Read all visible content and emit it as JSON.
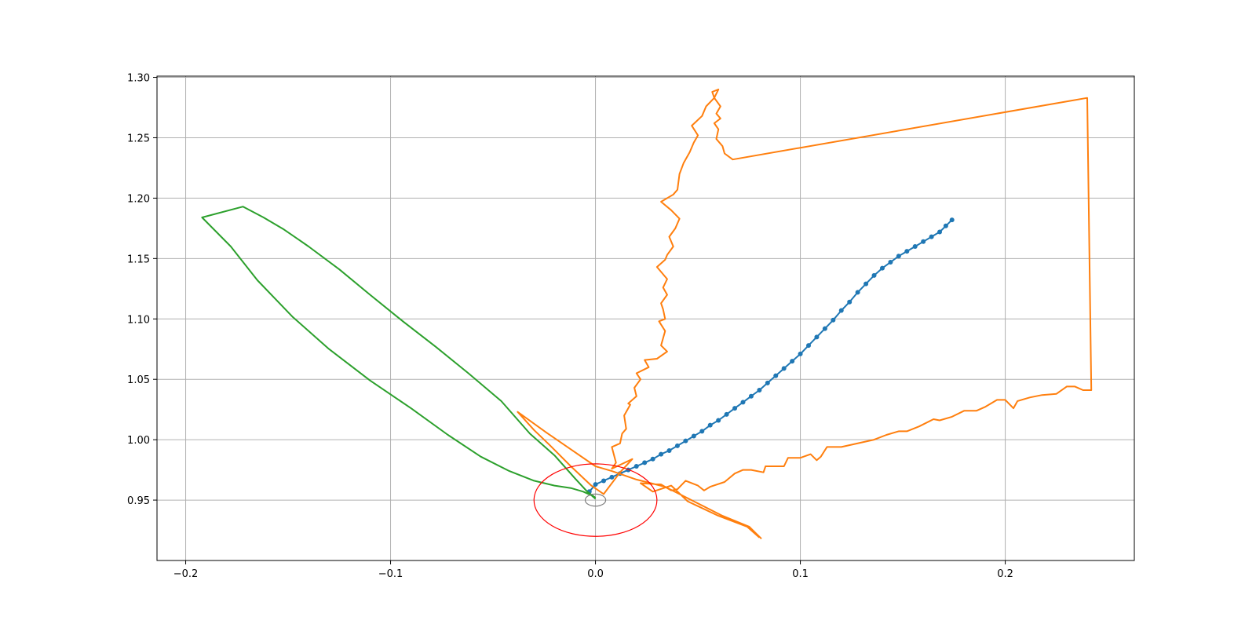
{
  "chart_data": {
    "type": "line",
    "title": "",
    "xlabel": "",
    "ylabel": "",
    "xlim": [
      -0.214,
      0.263
    ],
    "ylim": [
      0.9,
      1.301
    ],
    "x_ticks": [
      -0.2,
      -0.1,
      0.0,
      0.1,
      0.2
    ],
    "x_tick_labels": [
      "−0.2",
      "−0.1",
      "0.0",
      "0.1",
      "0.2"
    ],
    "y_ticks": [
      0.95,
      1.0,
      1.05,
      1.1,
      1.15,
      1.2,
      1.25,
      1.3
    ],
    "y_tick_labels": [
      "0.95",
      "1.00",
      "1.05",
      "1.10",
      "1.15",
      "1.20",
      "1.25",
      "1.30"
    ],
    "grid": true,
    "series": [
      {
        "color": "#1f77b4",
        "marker": "circle",
        "x": [
          -0.003,
          0.0,
          0.004,
          0.008,
          0.012,
          0.016,
          0.02,
          0.024,
          0.028,
          0.032,
          0.036,
          0.04,
          0.044,
          0.048,
          0.052,
          0.056,
          0.06,
          0.064,
          0.068,
          0.072,
          0.076,
          0.08,
          0.084,
          0.088,
          0.092,
          0.096,
          0.1,
          0.104,
          0.108,
          0.112,
          0.116,
          0.12,
          0.124,
          0.128,
          0.132,
          0.136,
          0.14,
          0.144,
          0.148,
          0.152,
          0.156,
          0.16,
          0.164,
          0.168,
          0.171,
          0.174
        ],
        "y": [
          0.957,
          0.963,
          0.966,
          0.969,
          0.972,
          0.975,
          0.978,
          0.981,
          0.984,
          0.988,
          0.991,
          0.995,
          0.999,
          1.003,
          1.007,
          1.012,
          1.016,
          1.021,
          1.026,
          1.031,
          1.036,
          1.041,
          1.047,
          1.053,
          1.059,
          1.065,
          1.071,
          1.078,
          1.085,
          1.092,
          1.099,
          1.107,
          1.114,
          1.122,
          1.129,
          1.136,
          1.142,
          1.147,
          1.152,
          1.156,
          1.16,
          1.164,
          1.168,
          1.172,
          1.177,
          1.182
        ]
      },
      {
        "color": "#ff7f0e",
        "marker": "none",
        "x": [
          0.081,
          0.075,
          0.062,
          0.048,
          0.034,
          0.02,
          0.008,
          0.0,
          -0.012,
          -0.024,
          -0.038,
          -0.03,
          -0.022,
          -0.012,
          -0.002,
          0.004,
          0.012,
          0.018,
          0.008,
          0.01,
          0.008,
          0.012,
          0.013,
          0.015,
          0.014,
          0.017,
          0.016,
          0.02,
          0.019,
          0.022,
          0.02,
          0.026,
          0.024,
          0.03,
          0.035,
          0.032,
          0.034,
          0.031,
          0.034,
          0.033,
          0.032,
          0.035,
          0.033,
          0.035,
          0.03,
          0.034,
          0.035,
          0.038,
          0.036,
          0.039,
          0.041,
          0.037,
          0.032,
          0.038,
          0.04,
          0.041,
          0.043,
          0.046,
          0.048,
          0.05,
          0.047,
          0.052,
          0.054,
          0.058,
          0.057,
          0.06,
          0.058,
          0.061,
          0.059,
          0.061,
          0.058,
          0.06,
          0.059,
          0.062,
          0.063,
          0.067,
          0.24,
          0.242,
          0.238,
          0.234,
          0.23,
          0.225,
          0.218,
          0.212,
          0.206,
          0.204,
          0.2,
          0.196,
          0.19,
          0.186,
          0.18,
          0.174,
          0.168,
          0.165,
          0.158,
          0.152,
          0.148,
          0.142,
          0.136,
          0.12,
          0.113,
          0.11,
          0.108,
          0.105,
          0.1,
          0.094,
          0.092,
          0.083,
          0.082,
          0.076,
          0.072,
          0.068,
          0.063,
          0.056,
          0.053,
          0.05,
          0.044,
          0.04,
          0.037,
          0.032,
          0.022,
          0.028,
          0.037,
          0.045,
          0.06,
          0.074,
          0.08
        ],
        "y": [
          0.918,
          0.928,
          0.937,
          0.949,
          0.961,
          0.967,
          0.974,
          0.978,
          0.992,
          1.006,
          1.023,
          1.008,
          0.995,
          0.978,
          0.962,
          0.955,
          0.973,
          0.984,
          0.976,
          0.981,
          0.994,
          0.997,
          1.005,
          1.009,
          1.02,
          1.029,
          1.03,
          1.036,
          1.043,
          1.05,
          1.055,
          1.06,
          1.066,
          1.067,
          1.073,
          1.078,
          1.09,
          1.098,
          1.1,
          1.108,
          1.113,
          1.12,
          1.126,
          1.133,
          1.143,
          1.149,
          1.153,
          1.16,
          1.168,
          1.175,
          1.183,
          1.19,
          1.197,
          1.203,
          1.207,
          1.22,
          1.229,
          1.238,
          1.246,
          1.252,
          1.26,
          1.268,
          1.276,
          1.283,
          1.288,
          1.29,
          1.283,
          1.276,
          1.27,
          1.266,
          1.262,
          1.257,
          1.249,
          1.243,
          1.237,
          1.232,
          1.283,
          1.041,
          1.041,
          1.044,
          1.044,
          1.038,
          1.037,
          1.035,
          1.032,
          1.026,
          1.033,
          1.033,
          1.027,
          1.024,
          1.024,
          1.019,
          1.016,
          1.017,
          1.011,
          1.007,
          1.007,
          1.004,
          1.0,
          0.994,
          0.994,
          0.986,
          0.983,
          0.988,
          0.985,
          0.985,
          0.978,
          0.978,
          0.973,
          0.975,
          0.975,
          0.972,
          0.965,
          0.961,
          0.958,
          0.962,
          0.966,
          0.959,
          0.958,
          0.963,
          0.964,
          0.957,
          0.962,
          0.949,
          0.937,
          0.928,
          0.919
        ]
      },
      {
        "color": "#2ca02c",
        "marker": "none",
        "x": [
          0.0,
          -0.002,
          -0.006,
          -0.012,
          -0.02,
          -0.03,
          -0.042,
          -0.056,
          -0.072,
          -0.09,
          -0.11,
          -0.13,
          -0.148,
          -0.165,
          -0.178,
          -0.192,
          -0.172,
          -0.162,
          -0.152,
          -0.14,
          -0.125,
          -0.11,
          -0.094,
          -0.078,
          -0.062,
          -0.046,
          -0.032,
          -0.02,
          -0.01,
          -0.004,
          0.0
        ],
        "y": [
          0.951,
          0.954,
          0.957,
          0.96,
          0.962,
          0.966,
          0.974,
          0.986,
          1.004,
          1.026,
          1.049,
          1.075,
          1.102,
          1.132,
          1.16,
          1.184,
          1.193,
          1.184,
          1.174,
          1.16,
          1.141,
          1.12,
          1.098,
          1.077,
          1.055,
          1.032,
          1.005,
          0.987,
          0.968,
          0.957,
          0.952
        ]
      }
    ],
    "annotations": [
      {
        "type": "circle",
        "color": "#ff0000",
        "center": [
          0.0,
          0.95
        ],
        "radius_data": 0.03
      },
      {
        "type": "circle",
        "color": "#808080",
        "center": [
          0.0,
          0.95
        ],
        "radius_data": 0.005
      }
    ]
  }
}
